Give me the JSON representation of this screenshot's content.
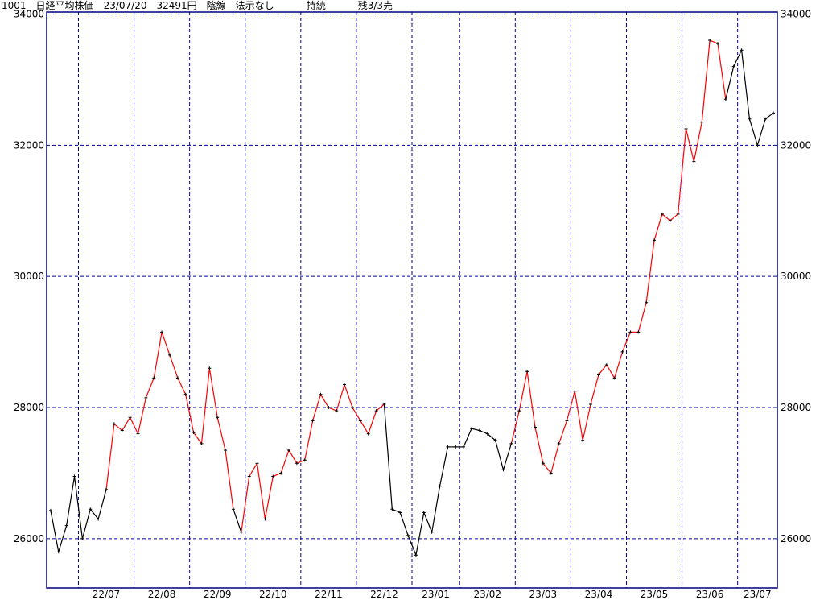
{
  "header": {
    "code": "1001",
    "name": "日経平均株価",
    "date": "23/07/20",
    "price": "32491円",
    "line_type": "陰線",
    "method": "法示なし",
    "status": "持続",
    "remaining": "残3/3売"
  },
  "chart_data": {
    "type": "line",
    "title": "",
    "xlabel": "",
    "ylabel": "",
    "ylim": [
      25250,
      34030
    ],
    "yticks": [
      26000,
      28000,
      30000,
      32000,
      34000
    ],
    "grid": true,
    "colors": {
      "red": "#ff0000",
      "black": "#000000",
      "grid": "#0000a0",
      "axis": "#000080"
    },
    "months": [
      {
        "label": "",
        "points": [
          [
            26430,
            "black"
          ],
          [
            25800,
            "black"
          ],
          [
            26200,
            "black"
          ],
          [
            26950,
            "black"
          ]
        ]
      },
      {
        "label": "22/07",
        "points": [
          [
            26000,
            "black"
          ],
          [
            26450,
            "black"
          ],
          [
            26300,
            "black"
          ],
          [
            26750,
            "black"
          ],
          [
            27750,
            "red"
          ],
          [
            27650,
            "red"
          ],
          [
            27850,
            "red"
          ]
        ]
      },
      {
        "label": "22/08",
        "points": [
          [
            27600,
            "red"
          ],
          [
            28150,
            "red"
          ],
          [
            28450,
            "red"
          ],
          [
            29150,
            "red"
          ],
          [
            28800,
            "red"
          ],
          [
            28450,
            "red"
          ],
          [
            28200,
            "red"
          ]
        ]
      },
      {
        "label": "22/09",
        "points": [
          [
            27620,
            "red"
          ],
          [
            27450,
            "red"
          ],
          [
            28600,
            "red"
          ],
          [
            27850,
            "red"
          ],
          [
            27350,
            "red"
          ],
          [
            26450,
            "red"
          ],
          [
            26100,
            "black"
          ]
        ]
      },
      {
        "label": "22/10",
        "points": [
          [
            26950,
            "red"
          ],
          [
            27150,
            "red"
          ],
          [
            26300,
            "red"
          ],
          [
            26950,
            "red"
          ],
          [
            27000,
            "red"
          ],
          [
            27350,
            "red"
          ],
          [
            27150,
            "red"
          ]
        ]
      },
      {
        "label": "22/11",
        "points": [
          [
            27200,
            "red"
          ],
          [
            27800,
            "red"
          ],
          [
            28200,
            "red"
          ],
          [
            28000,
            "red"
          ],
          [
            27950,
            "red"
          ],
          [
            28350,
            "red"
          ],
          [
            28000,
            "red"
          ]
        ]
      },
      {
        "label": "22/12",
        "points": [
          [
            27800,
            "red"
          ],
          [
            27600,
            "red"
          ],
          [
            27950,
            "red"
          ],
          [
            28050,
            "red"
          ],
          [
            26450,
            "black"
          ],
          [
            26400,
            "black"
          ],
          [
            26050,
            "black"
          ]
        ]
      },
      {
        "label": "23/01",
        "points": [
          [
            25750,
            "black"
          ],
          [
            26400,
            "black"
          ],
          [
            26100,
            "black"
          ],
          [
            26800,
            "black"
          ],
          [
            27400,
            "black"
          ],
          [
            27400,
            "black"
          ]
        ]
      },
      {
        "label": "23/02",
        "points": [
          [
            27400,
            "black"
          ],
          [
            27680,
            "black"
          ],
          [
            27650,
            "black"
          ],
          [
            27600,
            "black"
          ],
          [
            27500,
            "black"
          ],
          [
            27050,
            "black"
          ],
          [
            27450,
            "black"
          ]
        ]
      },
      {
        "label": "23/03",
        "points": [
          [
            27950,
            "red"
          ],
          [
            28550,
            "red"
          ],
          [
            27700,
            "red"
          ],
          [
            27150,
            "red"
          ],
          [
            27000,
            "red"
          ],
          [
            27450,
            "red"
          ],
          [
            27800,
            "red"
          ]
        ]
      },
      {
        "label": "23/04",
        "points": [
          [
            28250,
            "red"
          ],
          [
            27500,
            "red"
          ],
          [
            28050,
            "red"
          ],
          [
            28500,
            "red"
          ],
          [
            28650,
            "red"
          ],
          [
            28450,
            "red"
          ],
          [
            28850,
            "red"
          ]
        ]
      },
      {
        "label": "23/05",
        "points": [
          [
            29150,
            "red"
          ],
          [
            29150,
            "red"
          ],
          [
            29600,
            "red"
          ],
          [
            30550,
            "red"
          ],
          [
            30950,
            "red"
          ],
          [
            30850,
            "red"
          ],
          [
            30950,
            "red"
          ]
        ]
      },
      {
        "label": "23/06",
        "points": [
          [
            32250,
            "red"
          ],
          [
            31750,
            "red"
          ],
          [
            32350,
            "red"
          ],
          [
            33600,
            "red"
          ],
          [
            33550,
            "red"
          ],
          [
            32700,
            "red"
          ],
          [
            33200,
            "black"
          ]
        ]
      },
      {
        "label": "23/07",
        "points": [
          [
            33450,
            "black"
          ],
          [
            32400,
            "black"
          ],
          [
            32000,
            "black"
          ],
          [
            32400,
            "black"
          ],
          [
            32491,
            "black"
          ]
        ]
      }
    ]
  }
}
